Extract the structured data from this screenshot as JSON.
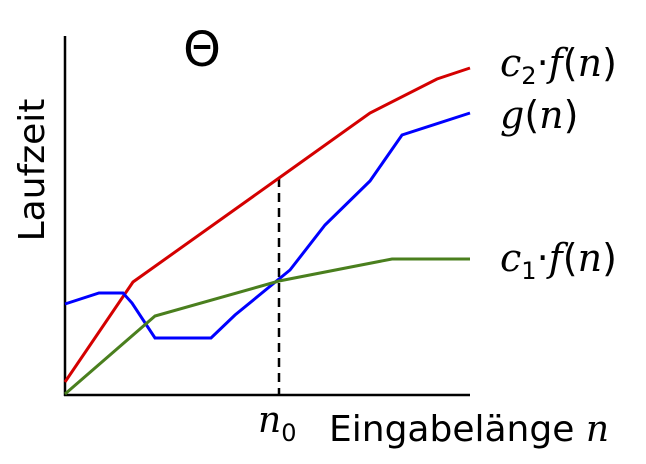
{
  "diagram": {
    "symbol": "Θ",
    "ylabel": "Laufzeit",
    "xlabel_text": "Eingabelänge",
    "xlabel_var": "n",
    "threshold": {
      "var": "n",
      "sub": "0"
    },
    "curves": {
      "upper": {
        "coef": "c",
        "sub": "2",
        "dot": "·",
        "func": "f",
        "arg": "n",
        "color": "#d40000"
      },
      "middle": {
        "func": "g",
        "arg": "n",
        "color": "#0000ff"
      },
      "lower": {
        "coef": "c",
        "sub": "1",
        "dot": "·",
        "func": "f",
        "arg": "n",
        "color": "#4a7f1e"
      }
    }
  }
}
